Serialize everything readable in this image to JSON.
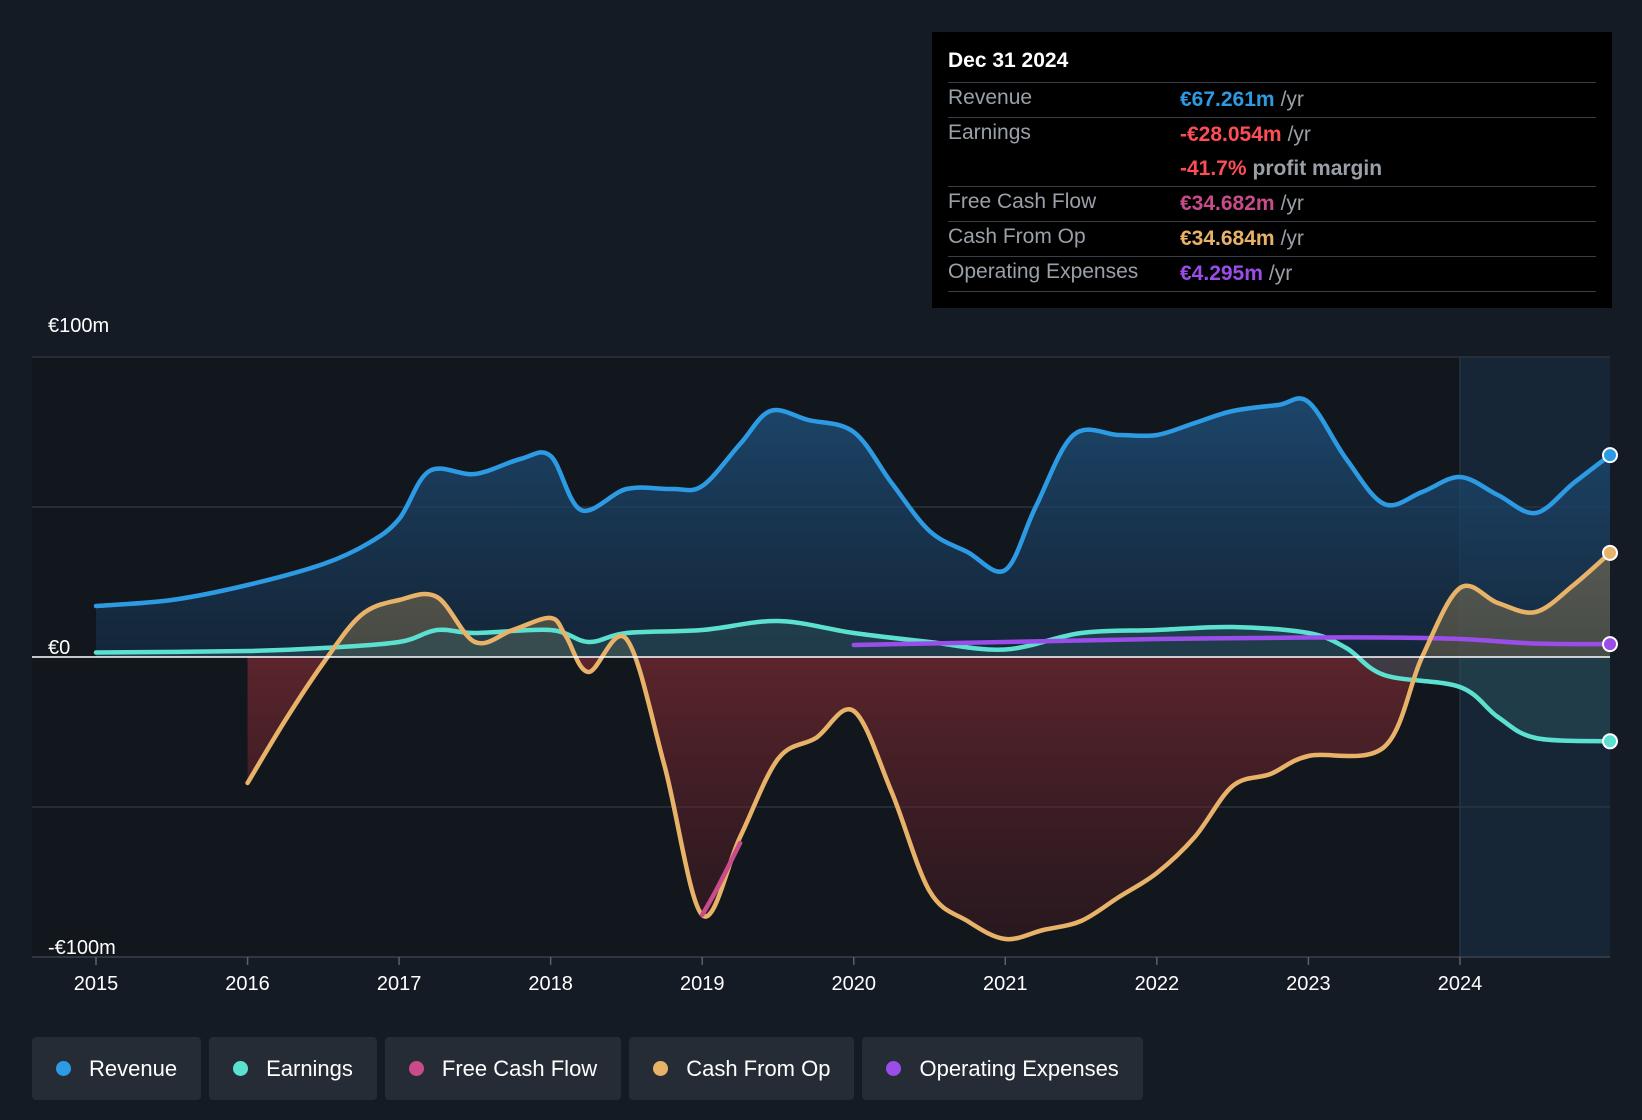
{
  "tooltip": {
    "date": "Dec 31 2024",
    "revenue_label": "Revenue",
    "revenue_value": "€67.261m",
    "revenue_unit": "/yr",
    "earnings_label": "Earnings",
    "earnings_value": "-€28.054m",
    "earnings_unit": "/yr",
    "margin_value": "-41.7%",
    "margin_unit": "profit margin",
    "fcf_label": "Free Cash Flow",
    "fcf_value": "€34.682m",
    "fcf_unit": "/yr",
    "cfo_label": "Cash From Op",
    "cfo_value": "€34.684m",
    "cfo_unit": "/yr",
    "opex_label": "Operating Expenses",
    "opex_value": "€4.295m",
    "opex_unit": "/yr"
  },
  "colors": {
    "revenue": "#2d9be3",
    "earnings": "#5ce1d0",
    "fcf": "#c94b8a",
    "cfo": "#e8b269",
    "opex": "#9b4dea",
    "loss": "#ff4d55"
  },
  "legend": [
    {
      "label": "Revenue",
      "color": "#2d9be3"
    },
    {
      "label": "Earnings",
      "color": "#5ce1d0"
    },
    {
      "label": "Free Cash Flow",
      "color": "#c94b8a"
    },
    {
      "label": "Cash From Op",
      "color": "#e8b269"
    },
    {
      "label": "Operating Expenses",
      "color": "#9b4dea"
    }
  ],
  "chart_data": {
    "type": "area",
    "y_labels": [
      "€100m",
      "€0",
      "-€100m"
    ],
    "ylim": [
      -100,
      100
    ],
    "xlim": [
      2015,
      2024.99
    ],
    "x_ticks": [
      2015,
      2016,
      2017,
      2018,
      2019,
      2020,
      2021,
      2022,
      2023,
      2024
    ],
    "x_tick_labels": [
      "2015",
      "2016",
      "2017",
      "2018",
      "2019",
      "2020",
      "2021",
      "2022",
      "2023",
      "2024"
    ],
    "highlight_from": 2024,
    "series": [
      {
        "name": "Revenue",
        "key": "revenue",
        "fill": true,
        "points": [
          [
            2015,
            17
          ],
          [
            2015.5,
            19
          ],
          [
            2016,
            24
          ],
          [
            2016.5,
            31
          ],
          [
            2016.8,
            38
          ],
          [
            2017,
            46
          ],
          [
            2017.2,
            62
          ],
          [
            2017.5,
            61
          ],
          [
            2017.8,
            66
          ],
          [
            2018,
            67
          ],
          [
            2018.2,
            49
          ],
          [
            2018.5,
            56
          ],
          [
            2018.8,
            56
          ],
          [
            2019,
            57
          ],
          [
            2019.25,
            71
          ],
          [
            2019.45,
            82
          ],
          [
            2019.7,
            79
          ],
          [
            2020,
            75
          ],
          [
            2020.25,
            58
          ],
          [
            2020.5,
            42
          ],
          [
            2020.75,
            35
          ],
          [
            2021,
            29
          ],
          [
            2021.2,
            50
          ],
          [
            2021.45,
            74
          ],
          [
            2021.75,
            74
          ],
          [
            2022,
            74
          ],
          [
            2022.25,
            78
          ],
          [
            2022.5,
            82
          ],
          [
            2022.8,
            84
          ],
          [
            2023,
            85
          ],
          [
            2023.25,
            66
          ],
          [
            2023.5,
            51
          ],
          [
            2023.75,
            55
          ],
          [
            2024,
            60
          ],
          [
            2024.25,
            54
          ],
          [
            2024.5,
            48
          ],
          [
            2024.75,
            58
          ],
          [
            2024.99,
            67.3
          ]
        ]
      },
      {
        "name": "Earnings",
        "key": "earnings",
        "fill": true,
        "points": [
          [
            2015,
            1.5
          ],
          [
            2016,
            2
          ],
          [
            2016.5,
            3
          ],
          [
            2017,
            5
          ],
          [
            2017.25,
            9
          ],
          [
            2017.5,
            8
          ],
          [
            2018,
            9
          ],
          [
            2018.25,
            5
          ],
          [
            2018.5,
            8
          ],
          [
            2019,
            9
          ],
          [
            2019.5,
            12
          ],
          [
            2020,
            8
          ],
          [
            2020.5,
            5
          ],
          [
            2021,
            2.5
          ],
          [
            2021.5,
            8
          ],
          [
            2022,
            9
          ],
          [
            2022.5,
            10
          ],
          [
            2023,
            8
          ],
          [
            2023.25,
            3
          ],
          [
            2023.5,
            -6
          ],
          [
            2024,
            -10
          ],
          [
            2024.25,
            -20
          ],
          [
            2024.5,
            -27
          ],
          [
            2024.99,
            -28.1
          ]
        ]
      },
      {
        "name": "Free Cash Flow",
        "key": "fcf",
        "fill": false,
        "points": [
          [
            2019,
            -86
          ],
          [
            2019.1,
            -77
          ],
          [
            2019.25,
            -62
          ]
        ]
      },
      {
        "name": "Cash From Op",
        "key": "cfo",
        "fill": false,
        "points": [
          [
            2016,
            -42
          ],
          [
            2016.25,
            -21
          ],
          [
            2016.5,
            -2
          ],
          [
            2016.75,
            14
          ],
          [
            2017,
            19
          ],
          [
            2017.25,
            20
          ],
          [
            2017.5,
            5
          ],
          [
            2017.75,
            9
          ],
          [
            2018,
            13
          ],
          [
            2018.1,
            7
          ],
          [
            2018.25,
            -5
          ],
          [
            2018.5,
            6
          ],
          [
            2018.75,
            -36
          ],
          [
            2019,
            -86
          ],
          [
            2019.25,
            -60
          ],
          [
            2019.5,
            -34
          ],
          [
            2019.75,
            -27
          ],
          [
            2020,
            -18
          ],
          [
            2020.25,
            -45
          ],
          [
            2020.5,
            -78
          ],
          [
            2020.75,
            -88
          ],
          [
            2021,
            -94
          ],
          [
            2021.25,
            -91
          ],
          [
            2021.5,
            -88
          ],
          [
            2021.75,
            -80
          ],
          [
            2022,
            -72
          ],
          [
            2022.25,
            -60
          ],
          [
            2022.5,
            -43
          ],
          [
            2022.75,
            -39
          ],
          [
            2023,
            -33
          ],
          [
            2023.5,
            -30
          ],
          [
            2023.75,
            0
          ],
          [
            2024,
            23
          ],
          [
            2024.25,
            18
          ],
          [
            2024.5,
            15
          ],
          [
            2024.75,
            24
          ],
          [
            2024.99,
            34.7
          ]
        ]
      },
      {
        "name": "Operating Expenses",
        "key": "opex",
        "fill": false,
        "points": [
          [
            2020,
            4
          ],
          [
            2021,
            5
          ],
          [
            2022,
            6
          ],
          [
            2023,
            6.5
          ],
          [
            2023.5,
            6.5
          ],
          [
            2024,
            6
          ],
          [
            2024.5,
            4.5
          ],
          [
            2024.99,
            4.3
          ]
        ]
      }
    ]
  }
}
